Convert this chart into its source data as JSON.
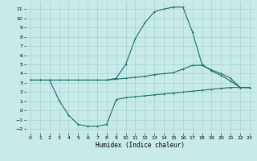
{
  "xlabel": "Humidex (Indice chaleur)",
  "bg_color": "#c8ebe8",
  "grid_color": "#a8d8d4",
  "line_color": "#1a6b6b",
  "xlim": [
    -0.5,
    23.5
  ],
  "ylim": [
    -2.5,
    11.8
  ],
  "xticks": [
    0,
    1,
    2,
    3,
    4,
    5,
    6,
    7,
    8,
    9,
    10,
    11,
    12,
    13,
    14,
    15,
    16,
    17,
    18,
    19,
    20,
    21,
    22,
    23
  ],
  "yticks": [
    -2,
    -1,
    0,
    1,
    2,
    3,
    4,
    5,
    6,
    7,
    8,
    9,
    10,
    11
  ],
  "curve1_x": [
    0,
    1,
    2,
    3,
    4,
    5,
    6,
    7,
    8,
    9,
    10,
    11,
    12,
    13,
    14,
    15,
    16,
    17,
    18,
    19,
    20,
    21,
    22,
    23
  ],
  "curve1_y": [
    3.3,
    3.3,
    3.3,
    3.3,
    3.3,
    3.3,
    3.3,
    3.3,
    3.3,
    3.5,
    5.0,
    7.8,
    9.5,
    10.7,
    11.0,
    11.2,
    11.2,
    8.5,
    5.0,
    4.3,
    3.8,
    3.2,
    2.5,
    2.5
  ],
  "curve2_x": [
    0,
    1,
    2,
    3,
    4,
    5,
    6,
    7,
    8,
    9,
    10,
    11,
    12,
    13,
    14,
    15,
    16,
    17,
    18,
    19,
    20,
    21,
    22,
    23
  ],
  "curve2_y": [
    3.3,
    3.3,
    3.3,
    3.3,
    3.3,
    3.3,
    3.3,
    3.3,
    3.3,
    3.4,
    3.5,
    3.6,
    3.7,
    3.9,
    4.0,
    4.1,
    4.5,
    4.9,
    4.9,
    4.4,
    4.0,
    3.5,
    2.5,
    2.5
  ],
  "curve3_x": [
    0,
    1,
    2,
    3,
    4,
    5,
    6,
    7,
    8,
    9,
    10,
    11,
    12,
    13,
    14,
    15,
    16,
    17,
    18,
    19,
    20,
    21,
    22,
    23
  ],
  "curve3_y": [
    3.3,
    3.3,
    3.3,
    1.1,
    -0.5,
    -1.5,
    -1.7,
    -1.7,
    -1.5,
    1.2,
    1.4,
    1.5,
    1.6,
    1.7,
    1.8,
    1.9,
    2.0,
    2.1,
    2.2,
    2.3,
    2.4,
    2.5,
    2.5,
    2.5
  ]
}
